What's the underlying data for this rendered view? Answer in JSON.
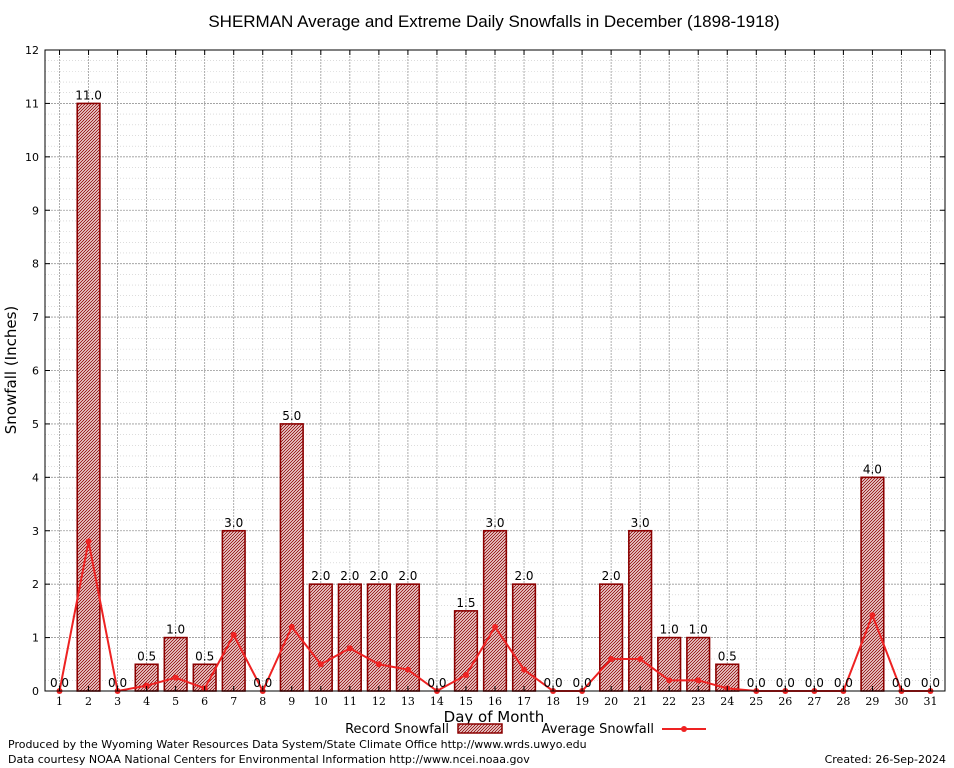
{
  "chart_data": {
    "type": "bar",
    "title": "SHERMAN Average and Extreme Daily Snowfalls in December (1898-1918)",
    "xlabel": "Day of Month",
    "ylabel": "Snowfall (Inches)",
    "ylim": [
      0,
      12
    ],
    "yticks": [
      "0",
      "1",
      "2",
      "3",
      "4",
      "5",
      "6",
      "7",
      "8",
      "9",
      "10",
      "11",
      "12"
    ],
    "grid": true,
    "legend_position": "bottom-center",
    "categories": [
      "1",
      "2",
      "3",
      "4",
      "5",
      "6",
      "7",
      "8",
      "9",
      "10",
      "11",
      "12",
      "13",
      "14",
      "15",
      "16",
      "17",
      "18",
      "19",
      "20",
      "21",
      "22",
      "23",
      "24",
      "25",
      "26",
      "27",
      "28",
      "29",
      "30",
      "31"
    ],
    "series": [
      {
        "name": "Record Snowfall",
        "kind": "bar",
        "color": "#8b0000",
        "values": [
          0,
          11,
          0,
          0.5,
          1,
          0.5,
          3,
          0,
          5,
          2,
          2,
          2,
          2,
          0,
          1.5,
          3,
          2,
          0,
          0,
          2,
          3,
          1,
          1,
          0.5,
          0,
          0,
          0,
          0,
          4,
          0,
          0
        ],
        "labels": [
          "0.0",
          "11.0",
          "0.0",
          "0.5",
          "1.0",
          "0.5",
          "3.0",
          "0.0",
          "5.0",
          "2.0",
          "2.0",
          "2.0",
          "2.0",
          "0.0",
          "1.5",
          "3.0",
          "2.0",
          "0.0",
          "0.0",
          "2.0",
          "3.0",
          "1.0",
          "1.0",
          "0.5",
          "0.0",
          "0.0",
          "0.0",
          "0.0",
          "4.0",
          "0.0",
          "0.0"
        ]
      },
      {
        "name": "Average Snowfall",
        "kind": "line",
        "color": "#ee2222",
        "values": [
          0,
          2.8,
          0,
          0.1,
          0.25,
          0.05,
          1.05,
          0,
          1.2,
          0.5,
          0.8,
          0.5,
          0.4,
          0,
          0.3,
          1.2,
          0.4,
          0,
          0,
          0.6,
          0.6,
          0.2,
          0.2,
          0.05,
          0,
          0,
          0,
          0,
          1.42,
          0,
          0
        ]
      }
    ]
  },
  "footer": {
    "credit1": "Produced by the Wyoming Water Resources Data System/State Climate Office http://www.wrds.uwyo.edu",
    "credit2": "Data courtesy NOAA National Centers for Environmental Information http://www.ncei.noaa.gov",
    "created": "Created:  26-Sep-2024"
  }
}
